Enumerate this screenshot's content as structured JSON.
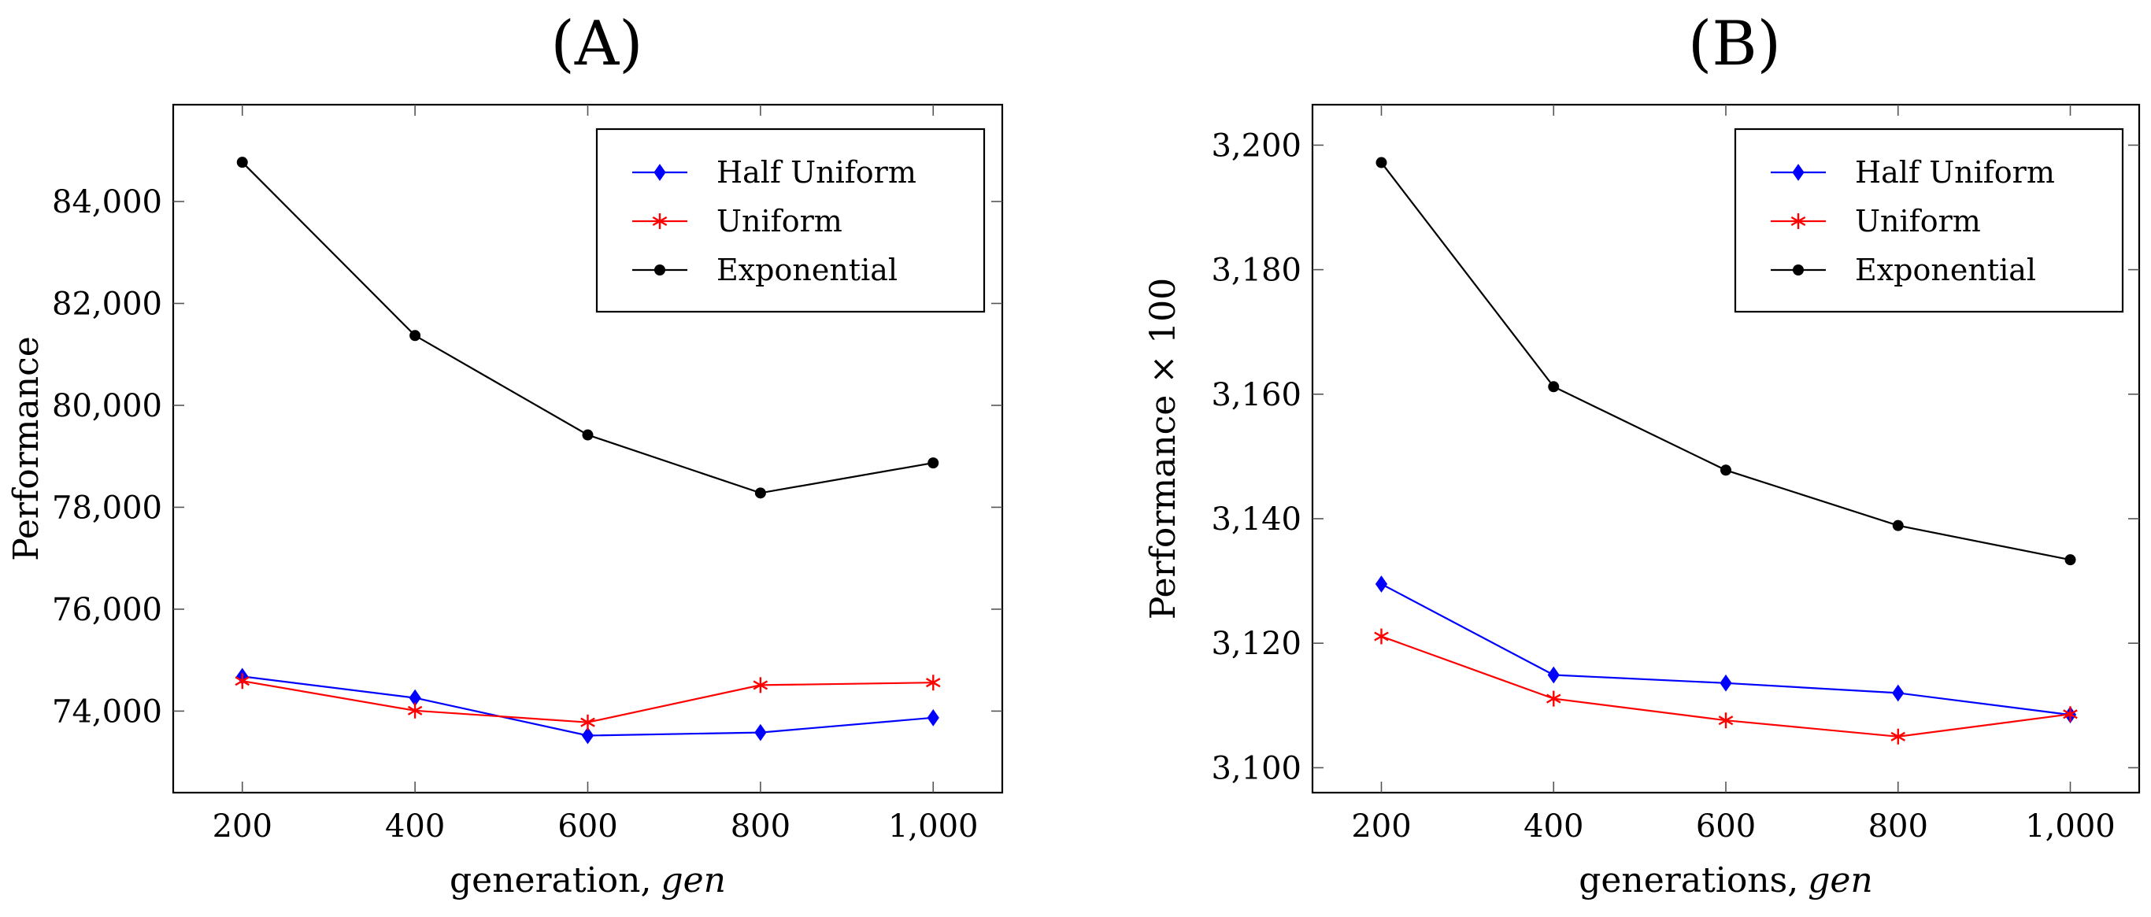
{
  "chart_data": [
    {
      "type": "line",
      "title": "(A)",
      "xlabel": "generation,",
      "xlabel_italic": "gen",
      "ylabel": "Performance",
      "x": [
        200,
        400,
        600,
        800,
        1000
      ],
      "x_tick_labels": [
        "200",
        "400",
        "600",
        "800",
        "1,000"
      ],
      "xlim": [
        120,
        1080
      ],
      "ylim": [
        72400,
        85900
      ],
      "y_ticks": [
        74000,
        76000,
        78000,
        80000,
        82000,
        84000
      ],
      "y_tick_labels": [
        "74,000",
        "76,000",
        "78,000",
        "80,000",
        "82,000",
        "84,000"
      ],
      "legend_position": "top-right",
      "series": [
        {
          "name": "Half Uniform",
          "color": "#0000ff",
          "marker": "diamond",
          "values": [
            74680,
            74260,
            73520,
            73580,
            73870
          ]
        },
        {
          "name": "Uniform",
          "color": "#ff0000",
          "marker": "star",
          "values": [
            74590,
            74010,
            73780,
            74510,
            74560
          ]
        },
        {
          "name": "Exponential",
          "color": "#000000",
          "marker": "circle",
          "values": [
            84770,
            81370,
            79420,
            78280,
            78870
          ]
        }
      ]
    },
    {
      "type": "line",
      "title": "(B)",
      "xlabel": "generations,",
      "xlabel_italic": "gen",
      "ylabel": "Performance × 100",
      "x": [
        200,
        400,
        600,
        800,
        1000
      ],
      "x_tick_labels": [
        "200",
        "400",
        "600",
        "800",
        "1,000"
      ],
      "xlim": [
        120,
        1080
      ],
      "ylim": [
        3096,
        3206.5
      ],
      "y_ticks": [
        3100,
        3120,
        3140,
        3160,
        3180,
        3200
      ],
      "y_tick_labels": [
        "3,100",
        "3,120",
        "3,140",
        "3,160",
        "3,180",
        "3,200"
      ],
      "legend_position": "top-right",
      "series": [
        {
          "name": "Half Uniform",
          "color": "#0000ff",
          "marker": "diamond",
          "values": [
            3129.5,
            3114.9,
            3113.6,
            3112.0,
            3108.5
          ]
        },
        {
          "name": "Uniform",
          "color": "#ff0000",
          "marker": "star",
          "values": [
            3121.1,
            3111.1,
            3107.6,
            3105.0,
            3108.6
          ]
        },
        {
          "name": "Exponential",
          "color": "#000000",
          "marker": "circle",
          "values": [
            3197.2,
            3161.2,
            3147.8,
            3138.9,
            3133.4
          ]
        }
      ]
    }
  ]
}
